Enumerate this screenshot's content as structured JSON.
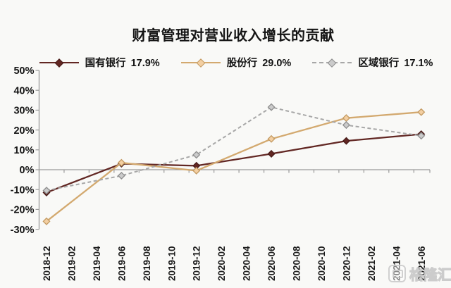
{
  "title": "财富管理对营业收入增长的贡献",
  "watermark": {
    "logo": "gelonghui-logo",
    "text": "格隆汇"
  },
  "chart_data": {
    "type": "line",
    "title": "财富管理对营业收入增长的贡献",
    "legend_position": "top",
    "grid": false,
    "categories": [
      "2018-12",
      "2019-02",
      "2019-04",
      "2019-06",
      "2019-08",
      "2019-10",
      "2019-12",
      "2020-02",
      "2020-04",
      "2020-06",
      "2020-08",
      "2020-10",
      "2020-12",
      "2021-02",
      "2021-04",
      "2021-06"
    ],
    "data_categories": [
      "2018-12",
      "2019-06",
      "2019-12",
      "2020-06",
      "2020-12",
      "2021-06"
    ],
    "series": [
      {
        "name": "国有银行",
        "legend_value": "17.9%",
        "line_style": "solid",
        "color": "#622723",
        "marker_fill": "#622723",
        "marker_border": "#471b18",
        "values": [
          -11.5,
          3.0,
          2.0,
          8.0,
          14.5,
          17.9
        ]
      },
      {
        "name": "股份行",
        "legend_value": "29.0%",
        "line_style": "solid",
        "color": "#d3a96f",
        "marker_fill": "#f3cfa2",
        "marker_border": "#c39a62",
        "values": [
          -26.0,
          3.5,
          -0.5,
          15.5,
          26.0,
          29.0
        ]
      },
      {
        "name": "区域银行",
        "legend_value": "17.1%",
        "line_style": "dashed",
        "color": "#a7a7a7",
        "marker_fill": "#cbcbcb",
        "marker_border": "#8e8e8e",
        "values": [
          -10.5,
          -3.0,
          7.5,
          31.5,
          22.5,
          17.1
        ]
      }
    ],
    "y_axis": {
      "min": -30,
      "max": 50,
      "step": 10,
      "tick_labels": [
        "50%",
        "40%",
        "30%",
        "20%",
        "10%",
        "0%",
        "-10%",
        "-20%",
        "-30%"
      ]
    }
  }
}
